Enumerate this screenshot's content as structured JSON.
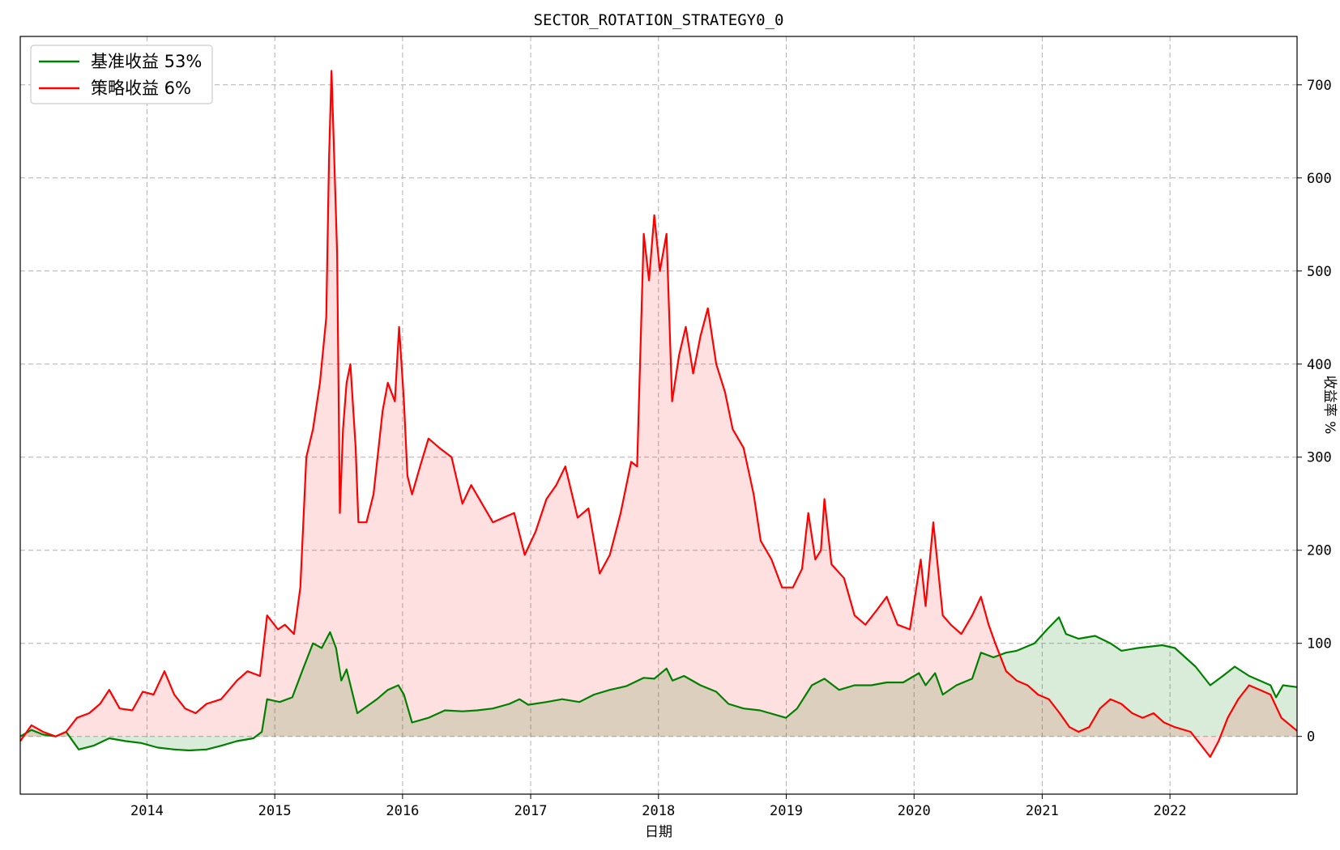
{
  "chart_data": {
    "type": "line",
    "title": "SECTOR_ROTATION_STRATEGY0_0",
    "xlabel": "日期",
    "ylabel": "收益率 %",
    "y_axis_side": "right",
    "x_range": [
      "2013-01-04",
      "2022-12-30"
    ],
    "ylim": [
      -62,
      752
    ],
    "x_ticks": [
      "2014",
      "2015",
      "2016",
      "2017",
      "2018",
      "2019",
      "2020",
      "2021",
      "2022"
    ],
    "y_ticks": [
      0,
      100,
      200,
      300,
      400,
      500,
      600,
      700
    ],
    "grid": true,
    "grid_style": "dashed",
    "legend_position": "top-left",
    "fill_to_zero": true,
    "series": [
      {
        "name": "基准收益 53%",
        "color": "#008000",
        "fill_color": "rgba(0,128,0,0.15)",
        "points": [
          [
            "2013-01-04",
            0
          ],
          [
            "2013-02-05",
            7
          ],
          [
            "2013-03-10",
            2
          ],
          [
            "2013-04-15",
            0
          ],
          [
            "2013-05-15",
            5
          ],
          [
            "2013-06-20",
            -14
          ],
          [
            "2013-08-01",
            -10
          ],
          [
            "2013-09-15",
            -2
          ],
          [
            "2013-11-01",
            -5
          ],
          [
            "2013-12-15",
            -7
          ],
          [
            "2014-02-01",
            -12
          ],
          [
            "2014-03-20",
            -14
          ],
          [
            "2014-05-01",
            -15
          ],
          [
            "2014-06-20",
            -14
          ],
          [
            "2014-08-01",
            -10
          ],
          [
            "2014-09-15",
            -5
          ],
          [
            "2014-11-01",
            -2
          ],
          [
            "2014-11-25",
            5
          ],
          [
            "2014-12-10",
            40
          ],
          [
            "2015-01-15",
            37
          ],
          [
            "2015-02-20",
            42
          ],
          [
            "2015-03-20",
            70
          ],
          [
            "2015-04-20",
            100
          ],
          [
            "2015-05-15",
            95
          ],
          [
            "2015-06-08",
            112
          ],
          [
            "2015-06-25",
            95
          ],
          [
            "2015-07-10",
            60
          ],
          [
            "2015-07-25",
            72
          ],
          [
            "2015-08-25",
            25
          ],
          [
            "2015-09-20",
            32
          ],
          [
            "2015-10-20",
            40
          ],
          [
            "2015-11-20",
            50
          ],
          [
            "2015-12-20",
            55
          ],
          [
            "2016-01-05",
            45
          ],
          [
            "2016-01-28",
            15
          ],
          [
            "2016-03-15",
            20
          ],
          [
            "2016-05-01",
            28
          ],
          [
            "2016-06-20",
            27
          ],
          [
            "2016-08-01",
            28
          ],
          [
            "2016-09-15",
            30
          ],
          [
            "2016-11-01",
            35
          ],
          [
            "2016-11-30",
            40
          ],
          [
            "2016-12-25",
            34
          ],
          [
            "2017-02-15",
            37
          ],
          [
            "2017-04-01",
            40
          ],
          [
            "2017-05-20",
            37
          ],
          [
            "2017-07-01",
            45
          ],
          [
            "2017-08-15",
            50
          ],
          [
            "2017-10-01",
            54
          ],
          [
            "2017-11-20",
            63
          ],
          [
            "2017-12-20",
            62
          ],
          [
            "2018-01-24",
            73
          ],
          [
            "2018-02-10",
            60
          ],
          [
            "2018-03-15",
            65
          ],
          [
            "2018-05-01",
            55
          ],
          [
            "2018-06-15",
            48
          ],
          [
            "2018-07-20",
            35
          ],
          [
            "2018-09-01",
            30
          ],
          [
            "2018-10-18",
            28
          ],
          [
            "2018-12-31",
            20
          ],
          [
            "2019-02-01",
            30
          ],
          [
            "2019-03-15",
            55
          ],
          [
            "2019-04-20",
            62
          ],
          [
            "2019-06-01",
            50
          ],
          [
            "2019-07-15",
            55
          ],
          [
            "2019-09-01",
            55
          ],
          [
            "2019-10-15",
            58
          ],
          [
            "2019-12-01",
            58
          ],
          [
            "2020-01-15",
            68
          ],
          [
            "2020-02-03",
            55
          ],
          [
            "2020-03-01",
            68
          ],
          [
            "2020-03-23",
            45
          ],
          [
            "2020-05-01",
            55
          ],
          [
            "2020-06-15",
            62
          ],
          [
            "2020-07-10",
            90
          ],
          [
            "2020-08-15",
            85
          ],
          [
            "2020-09-20",
            90
          ],
          [
            "2020-10-20",
            92
          ],
          [
            "2020-12-10",
            100
          ],
          [
            "2021-01-15",
            115
          ],
          [
            "2021-02-18",
            128
          ],
          [
            "2021-03-10",
            110
          ],
          [
            "2021-04-15",
            105
          ],
          [
            "2021-06-01",
            108
          ],
          [
            "2021-07-15",
            100
          ],
          [
            "2021-08-15",
            92
          ],
          [
            "2021-10-01",
            95
          ],
          [
            "2021-12-10",
            98
          ],
          [
            "2022-01-15",
            95
          ],
          [
            "2022-03-15",
            75
          ],
          [
            "2022-04-26",
            55
          ],
          [
            "2022-06-01",
            65
          ],
          [
            "2022-07-05",
            75
          ],
          [
            "2022-08-15",
            65
          ],
          [
            "2022-10-15",
            55
          ],
          [
            "2022-10-31",
            42
          ],
          [
            "2022-11-20",
            55
          ],
          [
            "2022-12-30",
            53
          ]
        ]
      },
      {
        "name": "策略收益 6%",
        "color": "#ff0000",
        "fill_color": "rgba(255,0,0,0.12)",
        "points": [
          [
            "2013-01-04",
            -5
          ],
          [
            "2013-02-05",
            12
          ],
          [
            "2013-03-10",
            5
          ],
          [
            "2013-04-15",
            0
          ],
          [
            "2013-05-15",
            5
          ],
          [
            "2013-06-15",
            20
          ],
          [
            "2013-07-20",
            25
          ],
          [
            "2013-08-20",
            35
          ],
          [
            "2013-09-15",
            50
          ],
          [
            "2013-10-15",
            30
          ],
          [
            "2013-11-20",
            28
          ],
          [
            "2013-12-20",
            48
          ],
          [
            "2014-01-20",
            45
          ],
          [
            "2014-02-20",
            70
          ],
          [
            "2014-03-20",
            45
          ],
          [
            "2014-04-20",
            30
          ],
          [
            "2014-05-20",
            25
          ],
          [
            "2014-06-20",
            35
          ],
          [
            "2014-08-01",
            40
          ],
          [
            "2014-09-15",
            60
          ],
          [
            "2014-10-15",
            70
          ],
          [
            "2014-11-20",
            65
          ],
          [
            "2014-12-10",
            130
          ],
          [
            "2015-01-10",
            115
          ],
          [
            "2015-01-30",
            120
          ],
          [
            "2015-02-25",
            110
          ],
          [
            "2015-03-15",
            160
          ],
          [
            "2015-04-01",
            300
          ],
          [
            "2015-04-20",
            330
          ],
          [
            "2015-05-10",
            380
          ],
          [
            "2015-05-28",
            450
          ],
          [
            "2015-06-05",
            620
          ],
          [
            "2015-06-12",
            715
          ],
          [
            "2015-06-20",
            620
          ],
          [
            "2015-06-28",
            520
          ],
          [
            "2015-07-06",
            240
          ],
          [
            "2015-07-15",
            330
          ],
          [
            "2015-07-25",
            380
          ],
          [
            "2015-08-05",
            400
          ],
          [
            "2015-08-20",
            310
          ],
          [
            "2015-08-28",
            230
          ],
          [
            "2015-09-20",
            230
          ],
          [
            "2015-10-10",
            260
          ],
          [
            "2015-11-05",
            350
          ],
          [
            "2015-11-20",
            380
          ],
          [
            "2015-12-10",
            360
          ],
          [
            "2015-12-22",
            440
          ],
          [
            "2016-01-05",
            360
          ],
          [
            "2016-01-15",
            280
          ],
          [
            "2016-01-28",
            260
          ],
          [
            "2016-02-20",
            290
          ],
          [
            "2016-03-15",
            320
          ],
          [
            "2016-04-15",
            310
          ],
          [
            "2016-05-20",
            300
          ],
          [
            "2016-06-20",
            250
          ],
          [
            "2016-07-15",
            270
          ],
          [
            "2016-08-15",
            250
          ],
          [
            "2016-09-15",
            230
          ],
          [
            "2016-10-15",
            235
          ],
          [
            "2016-11-15",
            240
          ],
          [
            "2016-12-15",
            195
          ],
          [
            "2017-01-15",
            220
          ],
          [
            "2017-02-15",
            255
          ],
          [
            "2017-03-15",
            270
          ],
          [
            "2017-04-10",
            290
          ],
          [
            "2017-05-15",
            235
          ],
          [
            "2017-06-15",
            245
          ],
          [
            "2017-07-17",
            175
          ],
          [
            "2017-08-15",
            195
          ],
          [
            "2017-09-15",
            240
          ],
          [
            "2017-10-15",
            295
          ],
          [
            "2017-11-01",
            290
          ],
          [
            "2017-11-20",
            540
          ],
          [
            "2017-12-05",
            490
          ],
          [
            "2017-12-20",
            560
          ],
          [
            "2018-01-05",
            500
          ],
          [
            "2018-01-24",
            540
          ],
          [
            "2018-02-09",
            360
          ],
          [
            "2018-03-01",
            410
          ],
          [
            "2018-03-20",
            440
          ],
          [
            "2018-04-10",
            390
          ],
          [
            "2018-05-01",
            430
          ],
          [
            "2018-05-22",
            460
          ],
          [
            "2018-06-15",
            400
          ],
          [
            "2018-07-10",
            370
          ],
          [
            "2018-08-01",
            330
          ],
          [
            "2018-09-01",
            310
          ],
          [
            "2018-09-30",
            260
          ],
          [
            "2018-10-20",
            210
          ],
          [
            "2018-11-20",
            190
          ],
          [
            "2018-12-20",
            160
          ],
          [
            "2019-01-20",
            160
          ],
          [
            "2019-02-15",
            180
          ],
          [
            "2019-03-05",
            240
          ],
          [
            "2019-03-25",
            190
          ],
          [
            "2019-04-10",
            200
          ],
          [
            "2019-04-20",
            255
          ],
          [
            "2019-05-10",
            185
          ],
          [
            "2019-06-15",
            170
          ],
          [
            "2019-07-15",
            130
          ],
          [
            "2019-08-15",
            120
          ],
          [
            "2019-09-15",
            135
          ],
          [
            "2019-10-15",
            150
          ],
          [
            "2019-11-15",
            120
          ],
          [
            "2019-12-20",
            115
          ],
          [
            "2020-01-20",
            190
          ],
          [
            "2020-02-03",
            140
          ],
          [
            "2020-02-25",
            230
          ],
          [
            "2020-03-23",
            130
          ],
          [
            "2020-04-15",
            120
          ],
          [
            "2020-05-15",
            110
          ],
          [
            "2020-06-15",
            130
          ],
          [
            "2020-07-10",
            150
          ],
          [
            "2020-08-01",
            120
          ],
          [
            "2020-08-20",
            100
          ],
          [
            "2020-09-20",
            70
          ],
          [
            "2020-10-20",
            60
          ],
          [
            "2020-11-20",
            55
          ],
          [
            "2020-12-20",
            45
          ],
          [
            "2021-01-20",
            40
          ],
          [
            "2021-02-20",
            25
          ],
          [
            "2021-03-20",
            10
          ],
          [
            "2021-04-15",
            5
          ],
          [
            "2021-05-15",
            10
          ],
          [
            "2021-06-15",
            30
          ],
          [
            "2021-07-15",
            40
          ],
          [
            "2021-08-15",
            35
          ],
          [
            "2021-09-15",
            25
          ],
          [
            "2021-10-15",
            20
          ],
          [
            "2021-11-15",
            25
          ],
          [
            "2021-12-15",
            15
          ],
          [
            "2022-01-15",
            10
          ],
          [
            "2022-03-01",
            5
          ],
          [
            "2022-04-26",
            -22
          ],
          [
            "2022-05-20",
            -5
          ],
          [
            "2022-06-15",
            20
          ],
          [
            "2022-07-15",
            40
          ],
          [
            "2022-08-15",
            55
          ],
          [
            "2022-09-15",
            50
          ],
          [
            "2022-10-15",
            45
          ],
          [
            "2022-11-15",
            20
          ],
          [
            "2022-12-30",
            6
          ]
        ]
      }
    ]
  }
}
